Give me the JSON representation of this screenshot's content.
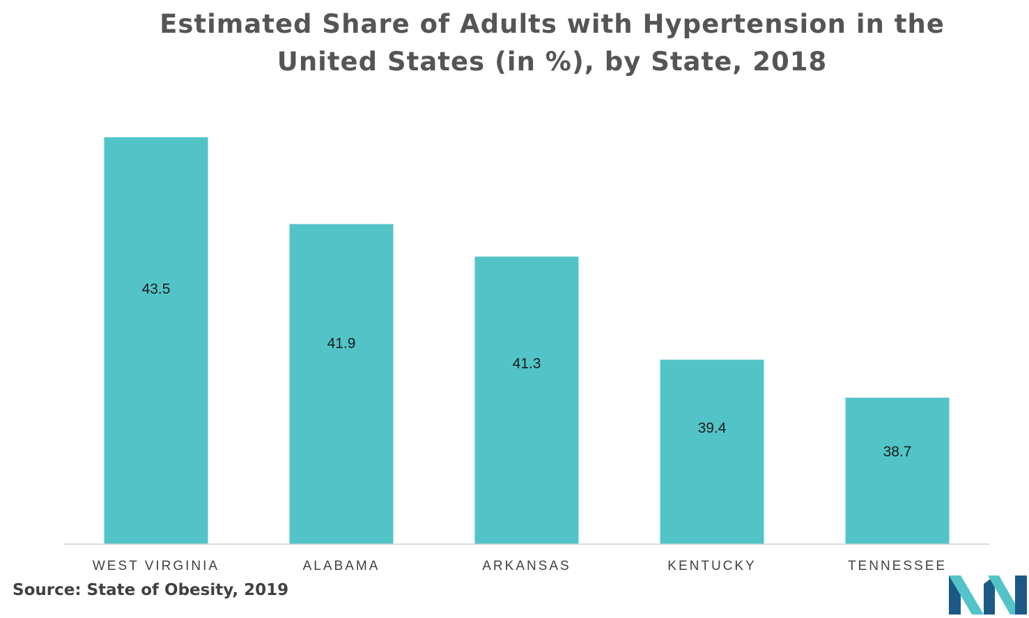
{
  "chart_data": {
    "type": "bar",
    "title": "Estimated Share of Adults with Hypertension in the United States (in %), by State, 2018",
    "title_lines": [
      "Estimated Share of Adults with Hypertension in the",
      "United States (in %), by State, 2018"
    ],
    "categories": [
      "WEST VIRGINIA",
      "ALABAMA",
      "ARKANSAS",
      "KENTUCKY",
      "TENNESSEE"
    ],
    "values": [
      43.5,
      41.9,
      41.3,
      39.4,
      38.7
    ],
    "data_labels": [
      "43.5",
      "41.9",
      "41.3",
      "39.4",
      "38.7"
    ],
    "xlabel": "",
    "ylabel": "",
    "y_axis_visible": false,
    "ylim": [
      36,
      44
    ],
    "grid": false,
    "legend": "none",
    "bar_color": "#52c4c8"
  },
  "source": "Source: State of Obesity, 2019",
  "logo": {
    "icon": "company-logo-icon",
    "colors": [
      "#1c5a85",
      "#52c4c8"
    ]
  }
}
